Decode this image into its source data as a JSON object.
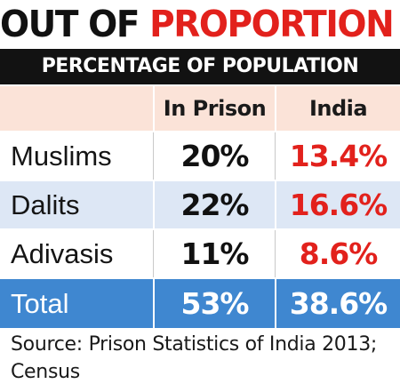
{
  "headline": {
    "part1": "OUT OF ",
    "part2": "PROPORTION"
  },
  "subtitle": "PERCENTAGE OF POPULATION",
  "colors": {
    "accent_red": "#e2211c",
    "header_bg": "#fbe3d8",
    "band_blue": "#dde7f5",
    "total_bg": "#3f87d0",
    "banner_bg": "#121212"
  },
  "table": {
    "columns": [
      "",
      "In Prison",
      "India"
    ],
    "rows": [
      {
        "label": "Muslims",
        "in_prison": "20%",
        "india": "13.4%"
      },
      {
        "label": "Dalits",
        "in_prison": "22%",
        "india": "16.6%"
      },
      {
        "label": "Adivasis",
        "in_prison": "11%",
        "india": "8.6%"
      }
    ],
    "total": {
      "label": "Total",
      "in_prison": "53%",
      "india": "38.6%"
    }
  },
  "source": "Source: Prison Statistics of India 2013; Census",
  "chart_data": {
    "type": "table",
    "title": "OUT OF PROPORTION",
    "subtitle": "PERCENTAGE OF POPULATION",
    "categories": [
      "Muslims",
      "Dalits",
      "Adivasis",
      "Total"
    ],
    "series": [
      {
        "name": "In Prison",
        "values": [
          20,
          22,
          11,
          53
        ]
      },
      {
        "name": "India",
        "values": [
          13.4,
          16.6,
          8.6,
          38.6
        ]
      }
    ]
  }
}
